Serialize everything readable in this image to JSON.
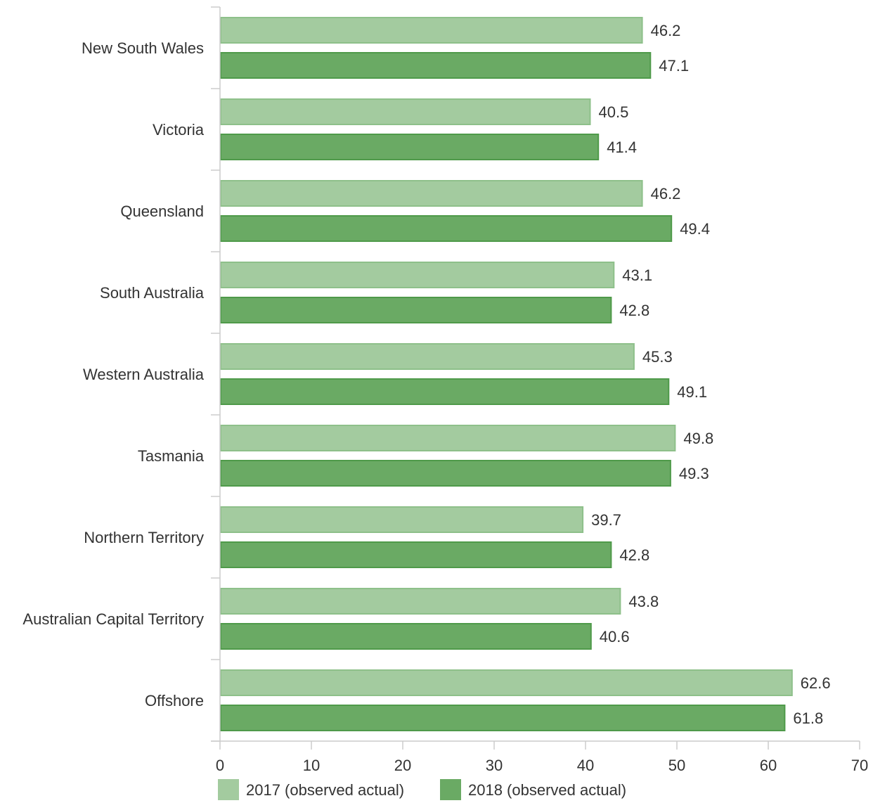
{
  "chart_data": {
    "type": "bar",
    "orientation": "horizontal",
    "categories": [
      "New South Wales",
      "Victoria",
      "Queensland",
      "South Australia",
      "Western Australia",
      "Tasmania",
      "Northern Territory",
      "Australian Capital Territory",
      "Offshore"
    ],
    "series": [
      {
        "name": "2017 (observed actual)",
        "color": "#a3cb9f",
        "stroke": "#8ec08a",
        "values": [
          46.2,
          40.5,
          46.2,
          43.1,
          45.3,
          49.8,
          39.7,
          43.8,
          62.6
        ]
      },
      {
        "name": "2018 (observed actual)",
        "color": "#6aaa64",
        "stroke": "#4f9a4a",
        "values": [
          47.1,
          41.4,
          49.4,
          42.8,
          49.1,
          49.3,
          42.8,
          40.6,
          61.8
        ]
      }
    ],
    "xlim": [
      0,
      70
    ],
    "xticks": [
      "0",
      "10",
      "20",
      "30",
      "40",
      "50",
      "60",
      "70"
    ],
    "grid": false,
    "legend_position": "bottom-left",
    "data_labels": true
  }
}
